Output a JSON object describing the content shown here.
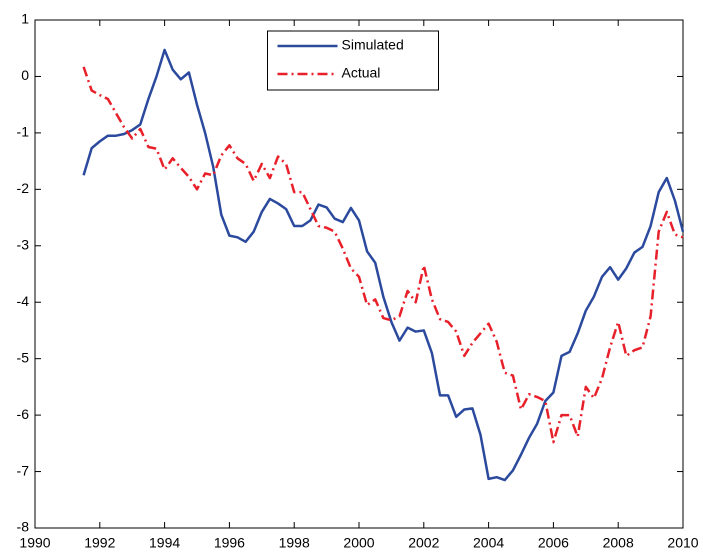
{
  "chart_data": {
    "type": "line",
    "x": [
      1991.5,
      1991.75,
      1992,
      1992.25,
      1992.5,
      1992.75,
      1993,
      1993.25,
      1993.5,
      1993.75,
      1994,
      1994.25,
      1994.5,
      1994.75,
      1995,
      1995.25,
      1995.5,
      1995.75,
      1996,
      1996.25,
      1996.5,
      1996.75,
      1997,
      1997.25,
      1997.5,
      1997.75,
      1998,
      1998.25,
      1998.5,
      1998.75,
      1999,
      1999.25,
      1999.5,
      1999.75,
      2000,
      2000.25,
      2000.5,
      2000.75,
      2001,
      2001.25,
      2001.5,
      2001.75,
      2002,
      2002.25,
      2002.5,
      2002.75,
      2003,
      2003.25,
      2003.5,
      2003.75,
      2004,
      2004.25,
      2004.5,
      2004.75,
      2005,
      2005.25,
      2005.5,
      2005.75,
      2006,
      2006.25,
      2006.5,
      2006.75,
      2007,
      2007.25,
      2007.5,
      2007.75,
      2008,
      2008.25,
      2008.5,
      2008.75,
      2009,
      2009.25,
      2009.5,
      2009.75,
      2010
    ],
    "series": [
      {
        "name": "Simulated",
        "color": "#2b4a9e",
        "style": "solid",
        "values": [
          -1.75,
          -1.27,
          -1.15,
          -1.05,
          -1.05,
          -1.02,
          -0.95,
          -0.85,
          -0.4,
          0.0,
          0.47,
          0.12,
          -0.05,
          0.07,
          -0.5,
          -1.0,
          -1.6,
          -2.45,
          -2.82,
          -2.85,
          -2.93,
          -2.75,
          -2.4,
          -2.17,
          -2.25,
          -2.35,
          -2.65,
          -2.65,
          -2.55,
          -2.27,
          -2.32,
          -2.52,
          -2.58,
          -2.33,
          -2.55,
          -3.1,
          -3.3,
          -3.9,
          -4.35,
          -4.68,
          -4.45,
          -4.52,
          -4.5,
          -4.9,
          -5.65,
          -5.65,
          -6.03,
          -5.9,
          -5.88,
          -6.35,
          -7.13,
          -7.1,
          -7.15,
          -6.98,
          -6.7,
          -6.4,
          -6.15,
          -5.75,
          -5.6,
          -4.95,
          -4.88,
          -4.55,
          -4.15,
          -3.9,
          -3.55,
          -3.38,
          -3.6,
          -3.4,
          -3.12,
          -3.02,
          -2.65,
          -2.05,
          -1.8,
          -2.2,
          -2.75
        ]
      },
      {
        "name": "Actual",
        "color": "#e8202a",
        "style": "dashdot",
        "values": [
          0.17,
          -0.25,
          -0.33,
          -0.4,
          -0.65,
          -0.9,
          -1.1,
          -0.93,
          -1.25,
          -1.28,
          -1.65,
          -1.45,
          -1.62,
          -1.78,
          -2.0,
          -1.72,
          -1.75,
          -1.4,
          -1.22,
          -1.45,
          -1.55,
          -1.85,
          -1.55,
          -1.8,
          -1.42,
          -1.55,
          -2.05,
          -2.05,
          -2.35,
          -2.65,
          -2.68,
          -2.75,
          -3.05,
          -3.4,
          -3.55,
          -4.05,
          -3.95,
          -4.28,
          -4.32,
          -4.25,
          -3.8,
          -4.0,
          -3.35,
          -3.95,
          -4.3,
          -4.35,
          -4.52,
          -4.95,
          -4.72,
          -4.55,
          -4.38,
          -4.7,
          -5.25,
          -5.3,
          -5.9,
          -5.63,
          -5.68,
          -5.75,
          -6.48,
          -6.0,
          -6.0,
          -6.38,
          -5.5,
          -5.7,
          -5.35,
          -4.8,
          -4.35,
          -4.95,
          -4.85,
          -4.8,
          -4.25,
          -2.75,
          -2.4,
          -2.8,
          -2.85
        ]
      }
    ],
    "xlim": [
      1990,
      2010
    ],
    "xticks": [
      1990,
      1992,
      1994,
      1996,
      1998,
      2000,
      2002,
      2004,
      2006,
      2008,
      2010
    ],
    "ylim": [
      -8,
      1
    ],
    "yticks": [
      -8,
      -7,
      -6,
      -5,
      -4,
      -3,
      -2,
      -1,
      0,
      1
    ],
    "grid": false,
    "legend": "top"
  }
}
